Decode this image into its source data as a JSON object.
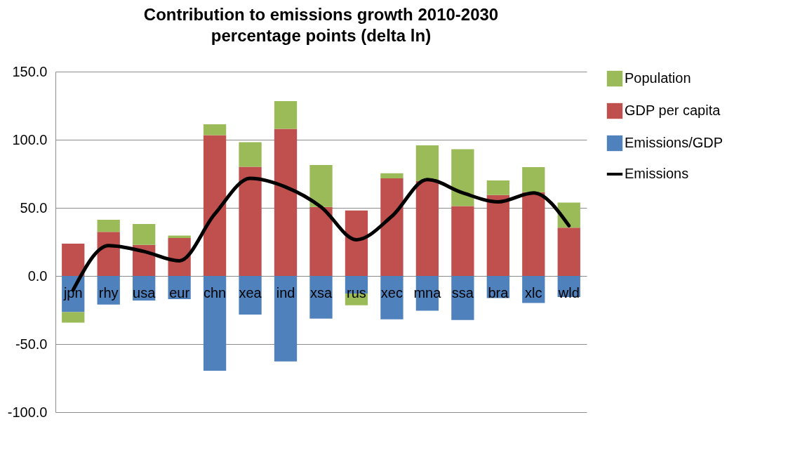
{
  "chart_data": {
    "type": "bar",
    "title": "Contribution to emissions growth 2010-2030",
    "subtitle": "percentage points (delta ln)",
    "categories": [
      "jpn",
      "rhy",
      "usa",
      "eur",
      "chn",
      "xea",
      "ind",
      "xsa",
      "rus",
      "xec",
      "mna",
      "ssa",
      "bra",
      "xlc",
      "wld"
    ],
    "stacked": true,
    "series": [
      {
        "name": "Emissions/GDP",
        "color": "#4f81bd",
        "values": [
          -26.6,
          -21,
          -18,
          -17,
          -69.6,
          -28.4,
          -62.7,
          -31.3,
          -12.9,
          -31.8,
          -25.5,
          -32.3,
          -16.3,
          -19.8,
          -15.5
        ]
      },
      {
        "name": "GDP per capita",
        "color": "#c0504d",
        "values": [
          23.7,
          32.3,
          22.8,
          27.8,
          103.4,
          80.2,
          108,
          50.7,
          48.1,
          71.6,
          69.6,
          51.3,
          59.4,
          61.5,
          35.4
        ]
      },
      {
        "name": "Population",
        "color": "#9bbb59",
        "values": [
          -7.7,
          8.9,
          15.3,
          1.9,
          7.9,
          18,
          20.4,
          30.7,
          -8.6,
          3.8,
          26.3,
          41.8,
          10.7,
          18.4,
          18.5
        ]
      },
      {
        "name": "Emissions",
        "type": "line",
        "color": "#000000",
        "values": [
          -10.3,
          22.3,
          18,
          11.1,
          45.5,
          71.6,
          65.3,
          50.7,
          26.6,
          43.8,
          70.8,
          61,
          54.4,
          61,
          36.9
        ]
      }
    ],
    "ylim": [
      -100,
      150
    ],
    "yticks": [
      {
        "value": -100,
        "label": "-100.0"
      },
      {
        "value": -50,
        "label": "-50.0"
      },
      {
        "value": 0,
        "label": "0.0"
      },
      {
        "value": 50,
        "label": "50.0"
      },
      {
        "value": 100,
        "label": "100.0"
      },
      {
        "value": 150,
        "label": "150.0"
      }
    ],
    "grid": "y",
    "legend": "right",
    "marker": "none",
    "line_style": "solid"
  }
}
